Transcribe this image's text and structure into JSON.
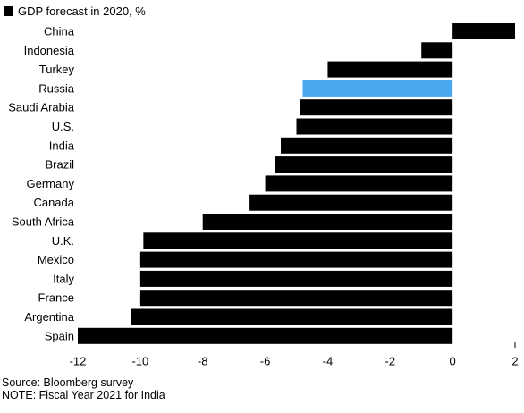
{
  "chart_data": {
    "type": "bar",
    "orientation": "horizontal",
    "legend": [
      {
        "label": "GDP forecast in 2020, %",
        "color": "#000000"
      }
    ],
    "categories": [
      "China",
      "Indonesia",
      "Turkey",
      "Russia",
      "Saudi Arabia",
      "U.S.",
      "India",
      "Brazil",
      "Germany",
      "Canada",
      "South Africa",
      "U.K.",
      "Mexico",
      "Italy",
      "France",
      "Argentina",
      "Spain"
    ],
    "values": [
      2.0,
      -1.0,
      -4.0,
      -4.8,
      -4.9,
      -5.0,
      -5.5,
      -5.7,
      -6.0,
      -6.5,
      -8.0,
      -9.9,
      -10.0,
      -10.0,
      -10.0,
      -10.3,
      -12.0
    ],
    "highlight": "Russia",
    "colors": {
      "default": "#000000",
      "highlight": "#4aa8f0"
    },
    "xlim": [
      -12,
      2
    ],
    "xticks": [
      -12,
      -10,
      -8,
      -6,
      -4,
      -2,
      0,
      2
    ],
    "grid": false,
    "legend_position": "top-left"
  },
  "footer": {
    "source": "Source: Bloomberg survey",
    "note": "NOTE: Fiscal Year 2021 for India"
  }
}
